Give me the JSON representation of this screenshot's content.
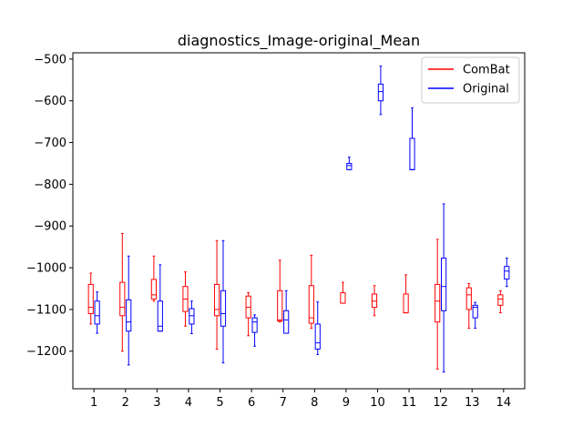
{
  "chart_data": {
    "type": "boxplot",
    "title": "diagnostics_Image-original_Mean",
    "xlabel": "",
    "ylabel": "",
    "categories": [
      "1",
      "2",
      "3",
      "4",
      "5",
      "6",
      "7",
      "8",
      "9",
      "10",
      "11",
      "12",
      "13",
      "14"
    ],
    "ylim": [
      -1290,
      -485
    ],
    "yticks": [
      -500,
      -600,
      -700,
      -800,
      -900,
      -1000,
      -1100,
      -1200
    ],
    "ytick_labels": [
      "−500",
      "−600",
      "−700",
      "−800",
      "−900",
      "−1000",
      "−1100",
      "−1200"
    ],
    "legend": {
      "position": "upper right",
      "entries": [
        "ComBat",
        "Original"
      ]
    },
    "series": [
      {
        "name": "ComBat",
        "color": "#ff0000",
        "boxes": [
          {
            "category": "1",
            "whislo": -1135,
            "q1": -1110,
            "median": -1095,
            "q3": -1040,
            "whishi": -1013
          },
          {
            "category": "2",
            "whislo": -1200,
            "q1": -1115,
            "median": -1095,
            "q3": -1035,
            "whishi": -918
          },
          {
            "category": "3",
            "whislo": -1080,
            "q1": -1075,
            "median": -1065,
            "q3": -1028,
            "whishi": -972
          },
          {
            "category": "4",
            "whislo": -1140,
            "q1": -1105,
            "median": -1075,
            "q3": -1045,
            "whishi": -1010
          },
          {
            "category": "5",
            "whislo": -1195,
            "q1": -1115,
            "median": -1100,
            "q3": -1040,
            "whishi": -935
          },
          {
            "category": "6",
            "whislo": -1163,
            "q1": -1120,
            "median": -1095,
            "q3": -1068,
            "whishi": -1060
          },
          {
            "category": "7",
            "whislo": -1130,
            "q1": -1128,
            "median": -1125,
            "q3": -1055,
            "whishi": -982
          },
          {
            "category": "8",
            "whislo": -1145,
            "q1": -1133,
            "median": -1120,
            "q3": -1043,
            "whishi": -970
          },
          {
            "category": "9",
            "whislo": -1085,
            "q1": -1085,
            "median": -1085,
            "q3": -1060,
            "whishi": -1035
          },
          {
            "category": "10",
            "whislo": -1115,
            "q1": -1095,
            "median": -1080,
            "q3": -1063,
            "whishi": -1043
          },
          {
            "category": "11",
            "whislo": -1108,
            "q1": -1108,
            "median": -1108,
            "q3": -1063,
            "whishi": -1017
          },
          {
            "category": "12",
            "whislo": -1243,
            "q1": -1130,
            "median": -1080,
            "q3": -1040,
            "whishi": -932
          },
          {
            "category": "13",
            "whislo": -1145,
            "q1": -1100,
            "median": -1065,
            "q3": -1048,
            "whishi": -1038
          },
          {
            "category": "14",
            "whislo": -1108,
            "q1": -1090,
            "median": -1075,
            "q3": -1065,
            "whishi": -1055
          }
        ]
      },
      {
        "name": "Original",
        "color": "#0000ff",
        "boxes": [
          {
            "category": "1",
            "whislo": -1157,
            "q1": -1135,
            "median": -1115,
            "q3": -1080,
            "whishi": -1058
          },
          {
            "category": "2",
            "whislo": -1233,
            "q1": -1152,
            "median": -1130,
            "q3": -1077,
            "whishi": -972
          },
          {
            "category": "3",
            "whislo": -1152,
            "q1": -1152,
            "median": -1140,
            "q3": -1080,
            "whishi": -993
          },
          {
            "category": "4",
            "whislo": -1158,
            "q1": -1135,
            "median": -1115,
            "q3": -1098,
            "whishi": -1080
          },
          {
            "category": "5",
            "whislo": -1228,
            "q1": -1140,
            "median": -1110,
            "q3": -1055,
            "whishi": -935
          },
          {
            "category": "6",
            "whislo": -1188,
            "q1": -1155,
            "median": -1130,
            "q3": -1120,
            "whishi": -1113
          },
          {
            "category": "7",
            "whislo": -1157,
            "q1": -1157,
            "median": -1125,
            "q3": -1103,
            "whishi": -1055
          },
          {
            "category": "8",
            "whislo": -1208,
            "q1": -1195,
            "median": -1180,
            "q3": -1135,
            "whishi": -1082
          },
          {
            "category": "9",
            "whislo": -765,
            "q1": -765,
            "median": -755,
            "q3": -750,
            "whishi": -735
          },
          {
            "category": "10",
            "whislo": -633,
            "q1": -600,
            "median": -578,
            "q3": -560,
            "whishi": -517
          },
          {
            "category": "11",
            "whislo": -765,
            "q1": -765,
            "median": -765,
            "q3": -690,
            "whishi": -617
          },
          {
            "category": "12",
            "whislo": -1250,
            "q1": -1103,
            "median": -1045,
            "q3": -977,
            "whishi": -847
          },
          {
            "category": "13",
            "whislo": -1145,
            "q1": -1120,
            "median": -1095,
            "q3": -1090,
            "whishi": -1083
          },
          {
            "category": "14",
            "whislo": -1045,
            "q1": -1027,
            "median": -1008,
            "q3": -997,
            "whishi": -977
          }
        ]
      }
    ]
  }
}
